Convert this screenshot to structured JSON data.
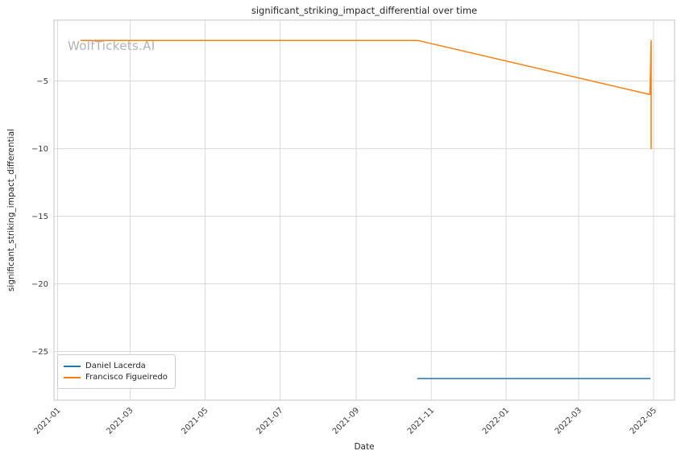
{
  "watermark": {
    "text": "WolfTickets.AI",
    "color": "#b3b3b3"
  },
  "chart_data": {
    "type": "line",
    "title": "significant_striking_impact_differential over time",
    "xlabel": "Date",
    "ylabel": "significant_striking_impact_differential",
    "x_ticks": [
      "2021-01",
      "2021-03",
      "2021-05",
      "2021-07",
      "2021-09",
      "2021-11",
      "2022-01",
      "2022-03",
      "2022-05"
    ],
    "y_ticks": [
      -5,
      -10,
      -15,
      -20,
      -25
    ],
    "x_domain": [
      "2020-12-29",
      "2022-05-18"
    ],
    "y_domain": [
      -28.6,
      -0.5
    ],
    "grid": true,
    "legend_position": "lower left",
    "colors": {
      "grid": "#d9d9d9",
      "spine": "#c6c6c6",
      "tick_label": "#3b3b3b"
    },
    "series": [
      {
        "name": "Daniel Lacerda",
        "color": "#1f77b4",
        "points": [
          [
            "2021-10-21",
            -27
          ],
          [
            "2022-04-28",
            -27
          ]
        ]
      },
      {
        "name": "Francisco Figueiredo",
        "color": "#ff7f0e",
        "points": [
          [
            "2021-01-20",
            -2
          ],
          [
            "2021-10-21",
            -2
          ],
          [
            "2022-04-28",
            -6
          ],
          [
            "2022-04-29",
            -2
          ],
          [
            "2022-04-29",
            -10
          ]
        ]
      }
    ]
  }
}
